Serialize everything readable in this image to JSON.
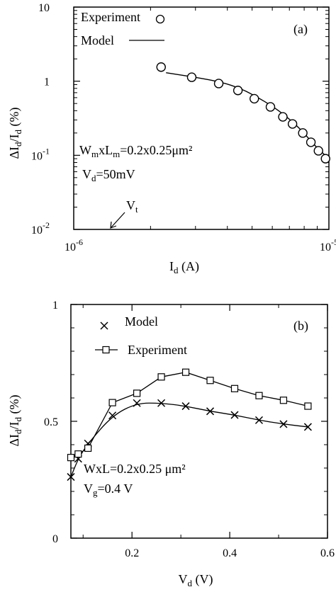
{
  "chart_data": [
    {
      "id": "a",
      "type": "scatter",
      "panel_label": "(a)",
      "x_scale": "log",
      "y_scale": "log",
      "xlim": [
        1e-06,
        1e-05
      ],
      "ylim": [
        0.01,
        10
      ],
      "x_ticks": [
        {
          "value": 1e-06,
          "base": "10",
          "exp": "-6"
        },
        {
          "value": 1e-05,
          "base": "10",
          "exp": "-5"
        }
      ],
      "y_ticks": [
        {
          "value": 10,
          "base": "10",
          "exp": ""
        },
        {
          "value": 1,
          "base": "1",
          "exp": ""
        },
        {
          "value": 0.1,
          "base": "10",
          "exp": "-1"
        },
        {
          "value": 0.01,
          "base": "10",
          "exp": "-2"
        }
      ],
      "xlabel": {
        "main": "I",
        "sub": "d",
        "rest": " (A)"
      },
      "ylabel": "ΔI_d/I_d (%)",
      "legend": [
        {
          "label": "Experiment",
          "marker": "circle"
        },
        {
          "label": "Model",
          "marker": "line"
        }
      ],
      "series": [
        {
          "name": "Experiment",
          "marker": "circle",
          "x": [
            2.2e-06,
            2.9e-06,
            3.7e-06,
            4.4e-06,
            5.1e-06,
            5.9e-06,
            6.6e-06,
            7.2e-06,
            7.9e-06,
            8.5e-06,
            9.1e-06,
            9.7e-06
          ],
          "y": [
            1.55,
            1.13,
            0.93,
            0.75,
            0.58,
            0.45,
            0.33,
            0.265,
            0.2,
            0.15,
            0.115,
            0.09
          ]
        },
        {
          "name": "Model",
          "marker": "line",
          "x": [
            2.3e-06,
            3e-06,
            3.8e-06,
            4.5e-06,
            5.2e-06,
            6e-06,
            6.7e-06,
            7.5e-06,
            8.2e-06,
            8.9e-06,
            1e-05
          ],
          "y": [
            1.3,
            1.13,
            0.97,
            0.8,
            0.62,
            0.46,
            0.35,
            0.25,
            0.18,
            0.13,
            0.09
          ]
        }
      ],
      "annotations": {
        "dims": {
          "w": "W",
          "w_sub": "m",
          "x": "xL",
          "l_sub": "m",
          "rest": "=0.2x0.25μm²"
        },
        "vd": {
          "main": "V",
          "sub": "d",
          "rest": "=50mV"
        },
        "vt": {
          "main": "V",
          "sub": "t",
          "x": 1.34e-06
        }
      }
    },
    {
      "id": "b",
      "type": "line",
      "panel_label": "(b)",
      "xlim": [
        0.075,
        0.6
      ],
      "ylim": [
        0,
        1
      ],
      "x_ticks": [
        "0.2",
        "0.4",
        "0.6"
      ],
      "y_ticks": [
        "0",
        "0.5",
        "1"
      ],
      "xlabel": {
        "main": "V",
        "sub": "d",
        "rest": " (V)"
      },
      "ylabel": "ΔI_d/I_d (%)",
      "legend": [
        {
          "label": "Model",
          "marker": "x"
        },
        {
          "label": "Experiment",
          "marker": "square"
        }
      ],
      "series": [
        {
          "name": "Model",
          "marker": "x",
          "x": [
            0.075,
            0.09,
            0.11,
            0.16,
            0.21,
            0.26,
            0.31,
            0.36,
            0.41,
            0.46,
            0.51,
            0.56
          ],
          "y": [
            0.262,
            0.34,
            0.405,
            0.525,
            0.578,
            0.578,
            0.565,
            0.543,
            0.527,
            0.505,
            0.488,
            0.476
          ]
        },
        {
          "name": "Experiment",
          "marker": "square",
          "x": [
            0.075,
            0.09,
            0.11,
            0.16,
            0.21,
            0.26,
            0.31,
            0.36,
            0.41,
            0.46,
            0.51,
            0.56
          ],
          "y": [
            0.345,
            0.36,
            0.385,
            0.58,
            0.62,
            0.69,
            0.71,
            0.675,
            0.64,
            0.61,
            0.59,
            0.565
          ]
        }
      ],
      "annotations": {
        "dims": {
          "text": "WxL=0.2x0.25 μm²"
        },
        "vg": {
          "main": "V",
          "sub": "g",
          "rest": "=0.4 V"
        }
      }
    }
  ]
}
